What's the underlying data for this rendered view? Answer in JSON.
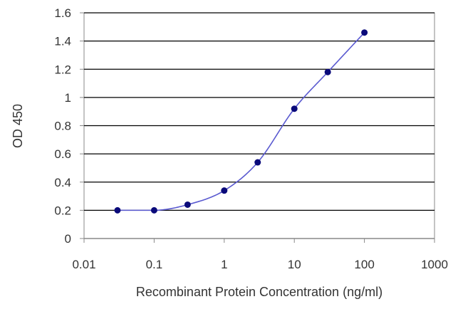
{
  "chart_data": {
    "type": "scatter",
    "title": "",
    "xlabel": "Recombinant Protein Concentration (ng/ml)",
    "ylabel": "OD 450",
    "xscale": "log",
    "xlim": [
      0.01,
      1000
    ],
    "ylim": [
      0,
      1.6
    ],
    "xticks": [
      0.01,
      0.1,
      1,
      10,
      100,
      1000
    ],
    "xtick_labels": [
      "0.01",
      "0.1",
      "1",
      "10",
      "100",
      "1000"
    ],
    "yticks": [
      0,
      0.2,
      0.4,
      0.6,
      0.8,
      1,
      1.2,
      1.4,
      1.6
    ],
    "ytick_labels": [
      "0",
      "0.2",
      "0.4",
      "0.6",
      "0.8",
      "1",
      "1.2",
      "1.4",
      "1.6"
    ],
    "grid": "horizontal",
    "fitted_curve": true,
    "series": [
      {
        "x": [
          0.03,
          0.1,
          0.3,
          1,
          3,
          10,
          30,
          100
        ],
        "y": [
          0.2,
          0.2,
          0.24,
          0.34,
          0.54,
          0.92,
          1.18,
          1.46
        ]
      }
    ],
    "colors": {
      "marker": "#0a0a7a",
      "curve": "#5a5ad0",
      "grid": "#000000",
      "axis": "#888888"
    }
  }
}
